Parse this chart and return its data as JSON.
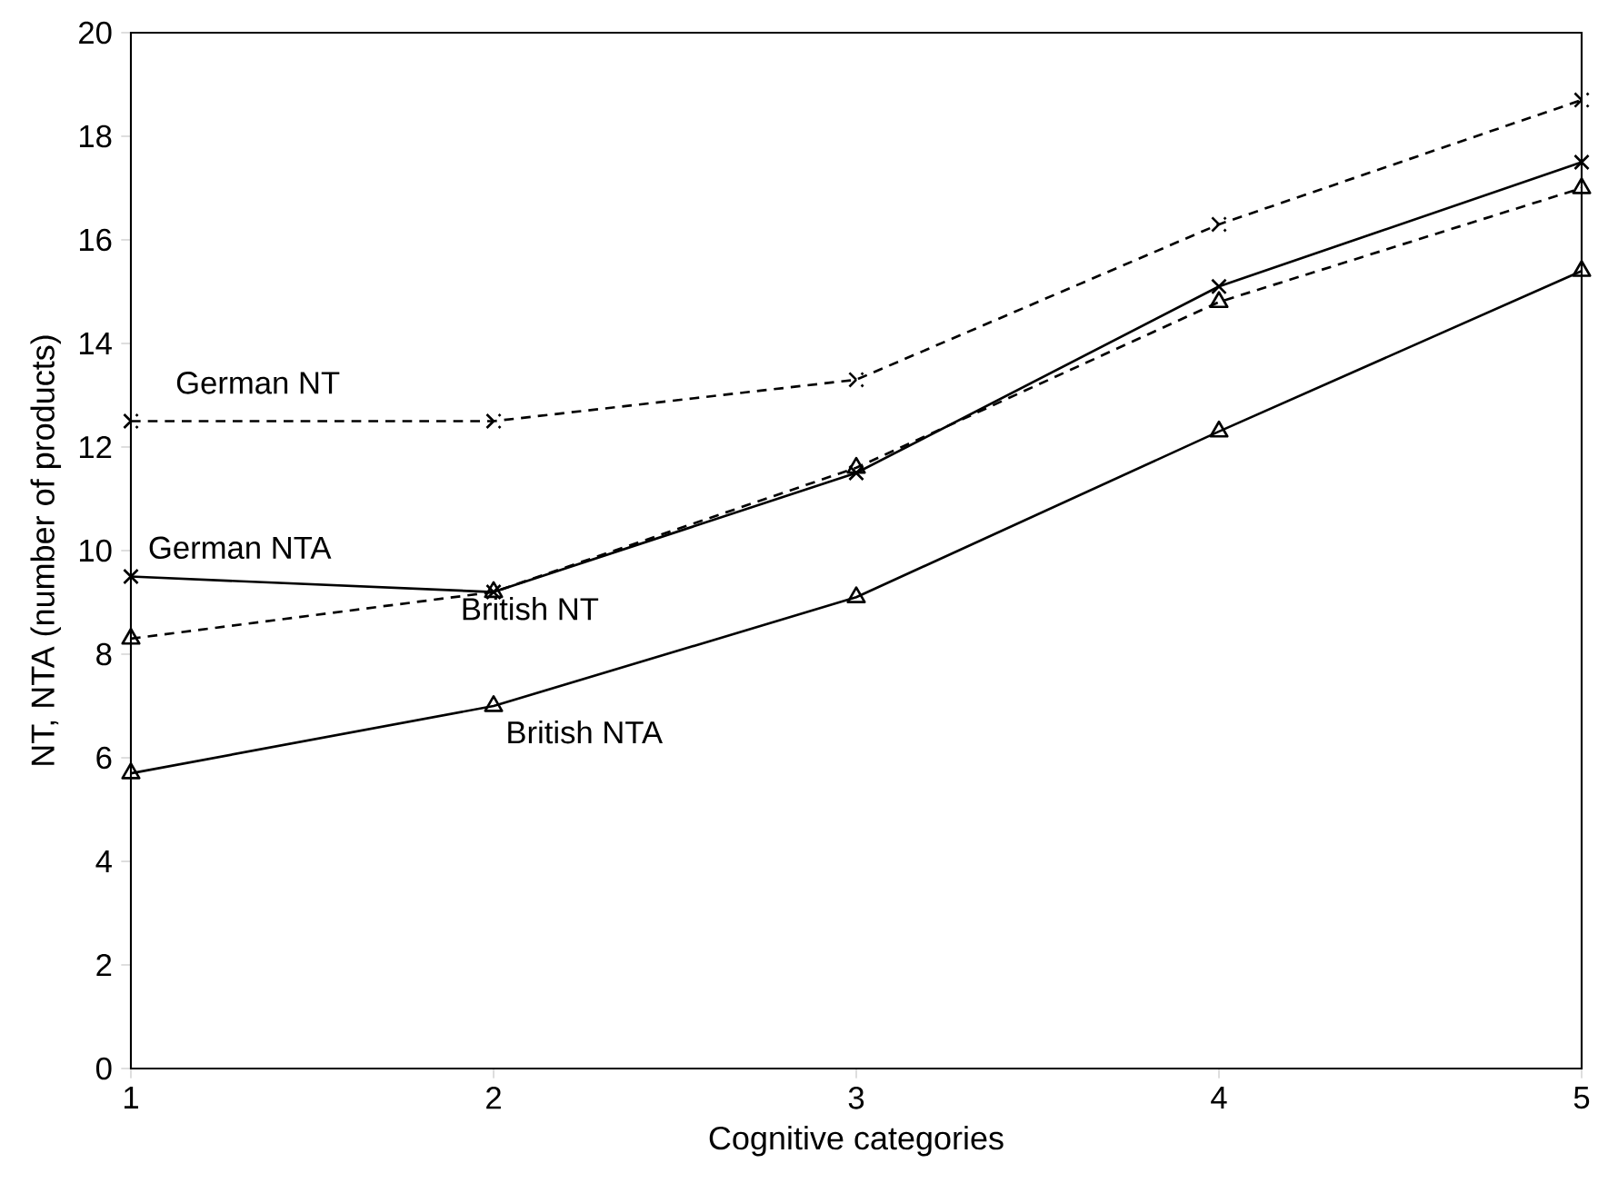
{
  "chart_data": {
    "type": "line",
    "xlabel": "Cognitive categories",
    "ylabel": "NT, NTA (number of products)",
    "x": [
      1,
      2,
      3,
      4,
      5
    ],
    "xlim": [
      1,
      5
    ],
    "xticks": [
      1,
      2,
      3,
      4,
      5
    ],
    "ylim": [
      0,
      20
    ],
    "yticks": [
      0,
      2,
      4,
      6,
      8,
      10,
      12,
      14,
      16,
      18,
      20
    ],
    "grid": false,
    "legend": false,
    "series": [
      {
        "name": "German NT",
        "color": "#000000",
        "marker": "cross",
        "line_style": "dashed",
        "values": [
          12.5,
          12.5,
          13.3,
          16.3,
          18.7
        ]
      },
      {
        "name": "German NTA",
        "color": "#000000",
        "marker": "cross",
        "line_style": "solid",
        "values": [
          9.5,
          9.2,
          11.5,
          15.1,
          17.5
        ]
      },
      {
        "name": "British NT",
        "color": "#000000",
        "marker": "triangle",
        "line_style": "dashed",
        "values": [
          8.3,
          9.2,
          11.6,
          14.8,
          17.0
        ]
      },
      {
        "name": "British NTA",
        "color": "#000000",
        "marker": "triangle",
        "line_style": "solid",
        "values": [
          5.7,
          7.0,
          9.1,
          12.3,
          15.4
        ]
      }
    ]
  }
}
